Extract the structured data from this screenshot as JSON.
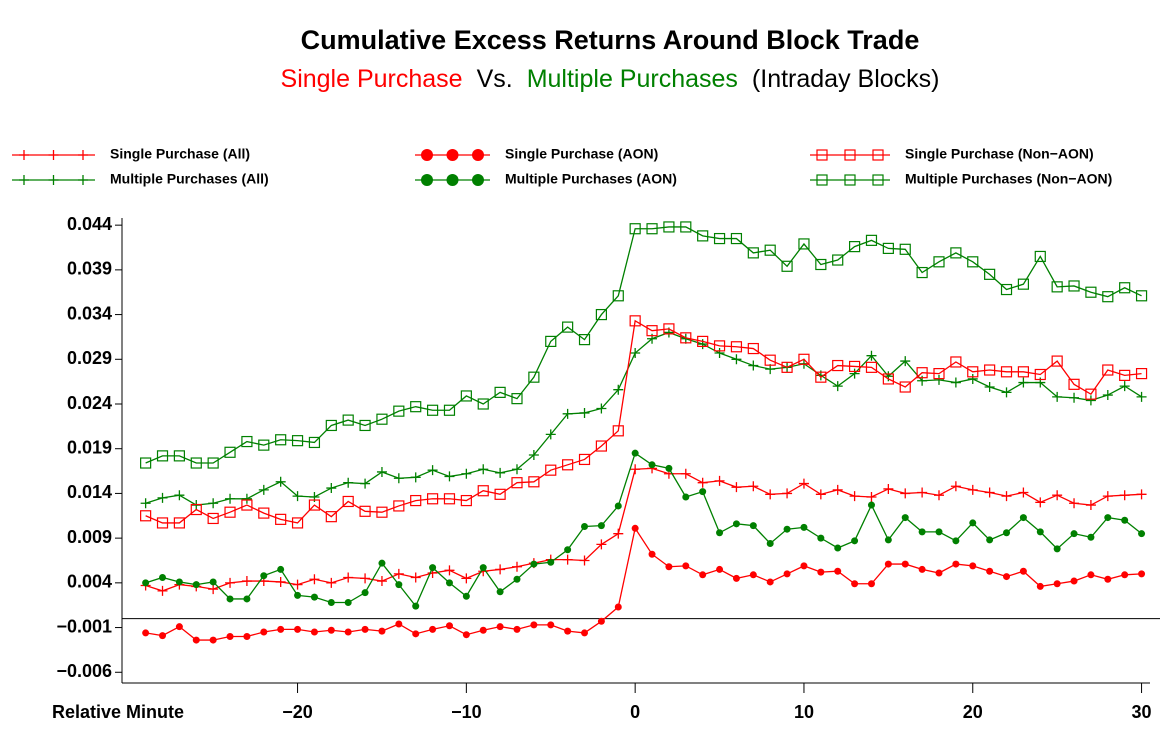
{
  "chart_data": {
    "type": "line",
    "title": "Cumulative Excess Returns Around Block Trade",
    "subtitle": [
      {
        "text": "Single Purchase",
        "color": "#ff0000"
      },
      {
        "text": "Vs.",
        "color": "#000000"
      },
      {
        "text": "Multiple Purchases",
        "color": "#008000"
      },
      {
        "text": "(Intraday Blocks)",
        "color": "#000000"
      }
    ],
    "x_label": "Relative Minute",
    "legend": "top",
    "refline": 0,
    "xlim": [
      -30.4,
      30.5
    ],
    "xticks": [
      {
        "value": -20,
        "label": "−20"
      },
      {
        "value": -10,
        "label": "−10"
      },
      0,
      10,
      20,
      30
    ],
    "ylim": [
      -0.0072,
      0.0448
    ],
    "yticks": [
      0.044,
      0.039,
      0.034,
      0.029,
      0.024,
      0.019,
      0.014,
      0.009,
      0.004,
      {
        "value": -0.001,
        "label": "−0.001"
      },
      {
        "value": -0.006,
        "label": "−0.006"
      }
    ],
    "x": [
      -29,
      -28,
      -27,
      -26,
      -25,
      -24,
      -23,
      -22,
      -21,
      -20,
      -19,
      -18,
      -17,
      -16,
      -15,
      -14,
      -13,
      -12,
      -11,
      -10,
      -9,
      -8,
      -7,
      -6,
      -5,
      -4,
      -3,
      -2,
      -1,
      0,
      1,
      2,
      3,
      4,
      5,
      6,
      7,
      8,
      9,
      10,
      11,
      12,
      13,
      14,
      15,
      16,
      17,
      18,
      19,
      20,
      21,
      22,
      23,
      24,
      25,
      26,
      27,
      28,
      29,
      30
    ],
    "series": [
      {
        "name": "Single Purchase (All)",
        "color": "#ff0000",
        "marker": "plus",
        "values": [
          0.0037,
          0.0031,
          0.0038,
          0.0036,
          0.0033,
          0.004,
          0.0042,
          0.0042,
          0.0041,
          0.0038,
          0.0044,
          0.004,
          0.0046,
          0.0045,
          0.0042,
          0.005,
          0.0046,
          0.0051,
          0.0054,
          0.0045,
          0.0053,
          0.0055,
          0.0058,
          0.0062,
          0.0066,
          0.0066,
          0.0065,
          0.0083,
          0.0095,
          0.0167,
          0.0168,
          0.0162,
          0.0162,
          0.0152,
          0.0154,
          0.0147,
          0.0148,
          0.0139,
          0.014,
          0.0151,
          0.0139,
          0.0144,
          0.0137,
          0.0136,
          0.0145,
          0.014,
          0.0141,
          0.0138,
          0.0148,
          0.0144,
          0.0141,
          0.0137,
          0.0141,
          0.013,
          0.0138,
          0.0129,
          0.0127,
          0.0137,
          0.0138,
          0.0139
        ]
      },
      {
        "name": "Multiple Purchases (All)",
        "color": "#008000",
        "marker": "plus",
        "values": [
          0.0129,
          0.0135,
          0.0138,
          0.0127,
          0.0129,
          0.0134,
          0.0134,
          0.0144,
          0.0153,
          0.0137,
          0.0136,
          0.0146,
          0.0152,
          0.0151,
          0.0164,
          0.0157,
          0.0158,
          0.0166,
          0.0159,
          0.0162,
          0.0167,
          0.0163,
          0.0167,
          0.0183,
          0.0206,
          0.0229,
          0.023,
          0.0235,
          0.0256,
          0.0297,
          0.0313,
          0.032,
          0.0313,
          0.0307,
          0.0297,
          0.029,
          0.0283,
          0.0279,
          0.0281,
          0.0285,
          0.0272,
          0.026,
          0.0274,
          0.0294,
          0.0271,
          0.0288,
          0.0266,
          0.0267,
          0.0264,
          0.0268,
          0.0259,
          0.0253,
          0.0264,
          0.0264,
          0.0248,
          0.0247,
          0.0244,
          0.025,
          0.026,
          0.0248
        ]
      },
      {
        "name": "Single Purchase (AON)",
        "color": "#ff0000",
        "marker": "dot",
        "values": [
          -0.0016,
          -0.0019,
          -0.0009,
          -0.0024,
          -0.0024,
          -0.002,
          -0.002,
          -0.0015,
          -0.0012,
          -0.0012,
          -0.0015,
          -0.0013,
          -0.0015,
          -0.0012,
          -0.0014,
          -0.0006,
          -0.0017,
          -0.0012,
          -0.0008,
          -0.0018,
          -0.0013,
          -0.0009,
          -0.0012,
          -0.0007,
          -0.0007,
          -0.0014,
          -0.0016,
          -0.0003,
          0.0013,
          0.0101,
          0.0072,
          0.0058,
          0.0059,
          0.0049,
          0.0055,
          0.0045,
          0.0049,
          0.0041,
          0.005,
          0.0059,
          0.0052,
          0.0053,
          0.0039,
          0.0039,
          0.0061,
          0.0061,
          0.0055,
          0.0051,
          0.0061,
          0.0059,
          0.0053,
          0.0047,
          0.0053,
          0.0036,
          0.0039,
          0.0042,
          0.0049,
          0.0044,
          0.0049,
          0.005
        ]
      },
      {
        "name": "Multiple Purchases (AON)",
        "color": "#008000",
        "marker": "dot",
        "values": [
          0.004,
          0.0046,
          0.0041,
          0.0038,
          0.0041,
          0.0022,
          0.0022,
          0.0048,
          0.0055,
          0.0026,
          0.0024,
          0.0018,
          0.0018,
          0.0029,
          0.0062,
          0.0038,
          0.0014,
          0.0057,
          0.004,
          0.0025,
          0.0057,
          0.003,
          0.0044,
          0.0061,
          0.0063,
          0.0077,
          0.0103,
          0.0104,
          0.0126,
          0.0185,
          0.0172,
          0.0168,
          0.0136,
          0.0142,
          0.0096,
          0.0106,
          0.0104,
          0.0084,
          0.01,
          0.0102,
          0.009,
          0.0079,
          0.0087,
          0.0127,
          0.0088,
          0.0113,
          0.0097,
          0.0097,
          0.0087,
          0.0107,
          0.0088,
          0.0096,
          0.0113,
          0.0097,
          0.0078,
          0.0095,
          0.0091,
          0.0113,
          0.011,
          0.0095
        ]
      },
      {
        "name": "Single Purchase (Non−AON)",
        "color": "#ff0000",
        "marker": "square",
        "values": [
          0.0115,
          0.0107,
          0.0107,
          0.0122,
          0.0112,
          0.0119,
          0.0127,
          0.0118,
          0.0111,
          0.0107,
          0.0127,
          0.0114,
          0.0131,
          0.012,
          0.0119,
          0.0126,
          0.0132,
          0.0134,
          0.0134,
          0.0132,
          0.0143,
          0.0139,
          0.0152,
          0.0153,
          0.0166,
          0.0172,
          0.0178,
          0.0193,
          0.021,
          0.0333,
          0.0322,
          0.0324,
          0.0314,
          0.031,
          0.0305,
          0.0304,
          0.0302,
          0.0289,
          0.0281,
          0.029,
          0.027,
          0.0283,
          0.0282,
          0.0281,
          0.0268,
          0.0259,
          0.0275,
          0.0274,
          0.0287,
          0.0276,
          0.0278,
          0.0276,
          0.0276,
          0.0273,
          0.0288,
          0.0262,
          0.0251,
          0.0278,
          0.0272,
          0.0274
        ]
      },
      {
        "name": "Multiple Purchases (Non−AON)",
        "color": "#008000",
        "marker": "square",
        "values": [
          0.0174,
          0.0182,
          0.0182,
          0.0174,
          0.0174,
          0.0186,
          0.0198,
          0.0194,
          0.02,
          0.0199,
          0.0197,
          0.0216,
          0.0222,
          0.0216,
          0.0223,
          0.0232,
          0.0237,
          0.0233,
          0.0233,
          0.0249,
          0.024,
          0.0253,
          0.0246,
          0.027,
          0.031,
          0.0326,
          0.0312,
          0.034,
          0.0361,
          0.0436,
          0.0436,
          0.0438,
          0.0438,
          0.0428,
          0.0425,
          0.0425,
          0.0409,
          0.0412,
          0.0394,
          0.0419,
          0.0396,
          0.0401,
          0.0416,
          0.0423,
          0.0414,
          0.0413,
          0.0387,
          0.0399,
          0.0409,
          0.0399,
          0.0385,
          0.0368,
          0.0374,
          0.0405,
          0.0371,
          0.0372,
          0.0365,
          0.036,
          0.037,
          0.0361
        ]
      }
    ]
  }
}
